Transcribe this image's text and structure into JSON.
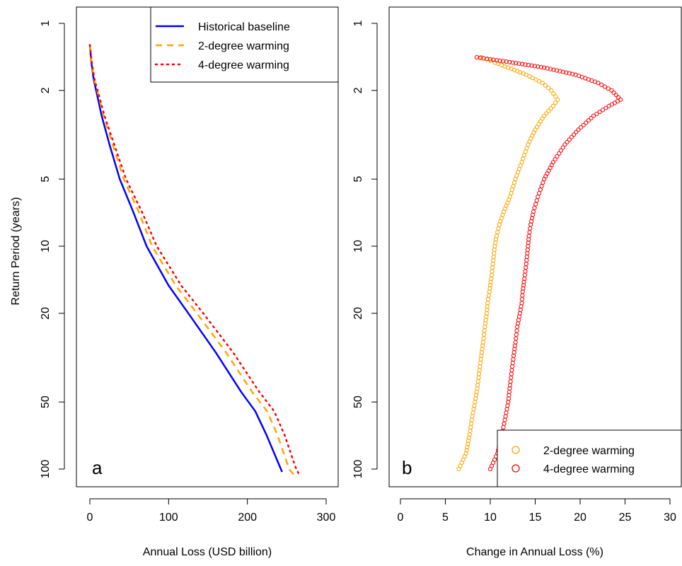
{
  "figure": {
    "ylabel": "Return Period (years)"
  },
  "chart_data": [
    {
      "type": "line",
      "panel_label": "a",
      "xlabel": "Annual Loss (USD billion)",
      "ylabel": "Return Period (years)",
      "xlim": [
        0,
        300
      ],
      "ylim": [
        1,
        100
      ],
      "y_scale": "log",
      "x_ticks": [
        "0",
        "100",
        "200",
        "300"
      ],
      "y_ticks": [
        "1",
        "2",
        "5",
        "10",
        "20",
        "50",
        "100"
      ],
      "grid": false,
      "legend_position": "top-right",
      "series": [
        {
          "name": "Historical baseline",
          "color": "#0000ff",
          "line_style": "solid",
          "points": [
            [
              0.0,
              1.25
            ],
            [
              2.0,
              1.5
            ],
            [
              5.0,
              1.8
            ],
            [
              8.0,
              2.0
            ],
            [
              15.0,
              2.6
            ],
            [
              25.0,
              3.5
            ],
            [
              38.0,
              5.0
            ],
            [
              55.0,
              7.0
            ],
            [
              72.0,
              10.0
            ],
            [
              100.0,
              15.0
            ],
            [
              125.0,
              20.0
            ],
            [
              160.0,
              30.0
            ],
            [
              192.0,
              45.0
            ],
            [
              210.0,
              55.0
            ],
            [
              224.0,
              70.0
            ],
            [
              244.0,
              103.0
            ]
          ]
        },
        {
          "name": "2-degree warming",
          "color": "#ffa500",
          "line_style": "dashed",
          "points": [
            [
              0.0,
              1.25
            ],
            [
              2.3,
              1.5
            ],
            [
              5.8,
              1.8
            ],
            [
              9.3,
              2.0
            ],
            [
              17.6,
              2.6
            ],
            [
              29.0,
              3.5
            ],
            [
              43.0,
              5.0
            ],
            [
              62.0,
              7.0
            ],
            [
              79.0,
              10.0
            ],
            [
              109.0,
              15.0
            ],
            [
              136.0,
              20.0
            ],
            [
              173.0,
              30.0
            ],
            [
              206.0,
              45.0
            ],
            [
              225.0,
              55.0
            ],
            [
              238.0,
              70.0
            ],
            [
              253.0,
              100.0
            ],
            [
              259.0,
              106.0
            ]
          ]
        },
        {
          "name": "4-degree warming",
          "color": "#ff0000",
          "line_style": "dotted",
          "points": [
            [
              0.0,
              1.25
            ],
            [
              2.5,
              1.5
            ],
            [
              6.2,
              1.8
            ],
            [
              9.9,
              2.0
            ],
            [
              18.6,
              2.6
            ],
            [
              31.0,
              3.5
            ],
            [
              46.0,
              5.0
            ],
            [
              66.0,
              7.0
            ],
            [
              85.0,
              10.0
            ],
            [
              116.0,
              15.0
            ],
            [
              144.0,
              20.0
            ],
            [
              182.0,
              30.0
            ],
            [
              215.0,
              45.0
            ],
            [
              234.0,
              55.0
            ],
            [
              247.0,
              70.0
            ],
            [
              262.0,
              100.0
            ],
            [
              266.0,
              106.0
            ]
          ]
        }
      ]
    },
    {
      "type": "scatter",
      "panel_label": "b",
      "xlabel": "Change in Annual Loss (%)",
      "xlim": [
        0,
        30
      ],
      "ylim": [
        1,
        100
      ],
      "y_scale": "log",
      "x_ticks": [
        "0",
        "5",
        "10",
        "15",
        "20",
        "25",
        "30"
      ],
      "y_ticks": [
        "1",
        "2",
        "5",
        "10",
        "20",
        "50",
        "100"
      ],
      "grid": false,
      "legend_position": "bottom-right",
      "marker": "open-circle",
      "series": [
        {
          "name": "2-degree warming",
          "color": "#ffa500",
          "points": [
            [
              9.0,
              1.42
            ],
            [
              9.6,
              1.45
            ],
            [
              10.5,
              1.5
            ],
            [
              12.0,
              1.58
            ],
            [
              14.0,
              1.7
            ],
            [
              15.8,
              1.85
            ],
            [
              16.8,
              2.0
            ],
            [
              17.5,
              2.2
            ],
            [
              17.0,
              2.35
            ],
            [
              16.0,
              2.6
            ],
            [
              15.0,
              3.0
            ],
            [
              14.2,
              3.5
            ],
            [
              13.5,
              4.2
            ],
            [
              12.8,
              5.0
            ],
            [
              12.2,
              6.0
            ],
            [
              11.5,
              7.0
            ],
            [
              11.0,
              8.0
            ],
            [
              10.7,
              9.0
            ],
            [
              10.5,
              10.0
            ],
            [
              10.3,
              12.0
            ],
            [
              10.1,
              14.0
            ],
            [
              9.9,
              16.0
            ],
            [
              9.7,
              18.0
            ],
            [
              9.6,
              20.0
            ],
            [
              9.4,
              23.0
            ],
            [
              9.2,
              27.0
            ],
            [
              9.0,
              31.0
            ],
            [
              8.8,
              36.0
            ],
            [
              8.6,
              42.0
            ],
            [
              8.3,
              50.0
            ],
            [
              8.0,
              58.0
            ],
            [
              7.7,
              70.0
            ],
            [
              7.3,
              85.0
            ],
            [
              6.5,
              100.0
            ]
          ]
        },
        {
          "name": "4-degree warming",
          "color": "#ff0000",
          "points": [
            [
              8.5,
              1.42
            ],
            [
              10.0,
              1.45
            ],
            [
              12.5,
              1.5
            ],
            [
              16.0,
              1.58
            ],
            [
              19.5,
              1.7
            ],
            [
              22.0,
              1.85
            ],
            [
              23.5,
              2.0
            ],
            [
              24.5,
              2.2
            ],
            [
              23.2,
              2.35
            ],
            [
              21.5,
              2.6
            ],
            [
              19.8,
              3.0
            ],
            [
              18.3,
              3.5
            ],
            [
              17.0,
              4.2
            ],
            [
              16.0,
              5.0
            ],
            [
              15.3,
              6.0
            ],
            [
              14.8,
              7.0
            ],
            [
              14.5,
              8.0
            ],
            [
              14.3,
              9.0
            ],
            [
              14.2,
              10.0
            ],
            [
              14.0,
              12.0
            ],
            [
              13.8,
              14.0
            ],
            [
              13.6,
              16.0
            ],
            [
              13.5,
              18.0
            ],
            [
              13.3,
              20.0
            ],
            [
              13.0,
              23.0
            ],
            [
              12.8,
              27.0
            ],
            [
              12.6,
              31.0
            ],
            [
              12.4,
              36.0
            ],
            [
              12.2,
              42.0
            ],
            [
              12.0,
              50.0
            ],
            [
              11.7,
              58.0
            ],
            [
              11.3,
              70.0
            ],
            [
              10.8,
              85.0
            ],
            [
              10.0,
              100.0
            ]
          ]
        }
      ]
    }
  ]
}
